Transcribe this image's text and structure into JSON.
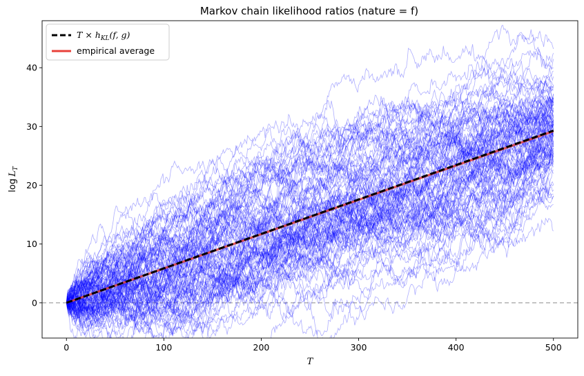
{
  "chart_data": {
    "type": "line",
    "title": "Markov chain likelihood ratios (nature = f)",
    "xlabel": "T",
    "ylabel": "log L_T",
    "ylabel_parts": {
      "base": "log",
      "var": "L",
      "sub": "T"
    },
    "xlim": [
      -25,
      525
    ],
    "ylim": [
      -6,
      48
    ],
    "xticks": [
      0,
      100,
      200,
      300,
      400,
      500
    ],
    "yticks": [
      0,
      10,
      20,
      30,
      40
    ],
    "grid": false,
    "legend_position": "top-left",
    "reference_line": {
      "y": 0,
      "style": "dashed",
      "color": "#b0b0b0"
    },
    "series": [
      {
        "name": "T × h_KL(f, g)",
        "label_parts": {
          "t": "T",
          "times": " × ",
          "h": "h",
          "sub": "KL",
          "args": "(f, g)"
        },
        "x": [
          0,
          500
        ],
        "y": [
          0,
          29.3
        ],
        "color": "#000000",
        "style": "dashed"
      },
      {
        "name": "empirical average",
        "x": [
          0,
          500
        ],
        "y": [
          0,
          29.2
        ],
        "color": "#e8403a",
        "style": "solid"
      }
    ],
    "simulated_paths": {
      "count": 100,
      "length": 500,
      "color": "#0000ff",
      "final_values_sample": [
        12.2,
        18.5,
        18.2,
        22.0,
        23.5,
        25.0,
        26.5,
        27.5,
        28.5,
        29.3,
        30.0,
        31.0,
        32.0,
        33.0,
        34.0,
        35.5,
        37.0,
        38.5,
        40.0,
        41.5,
        42.5,
        43.2
      ],
      "peak_max": 45.5,
      "trough_min": -3.8
    },
    "colors": {
      "paths": "#0000ff",
      "theory": "#000000",
      "empirical": "#e8403a",
      "zero_line": "#b0b0b0"
    }
  }
}
